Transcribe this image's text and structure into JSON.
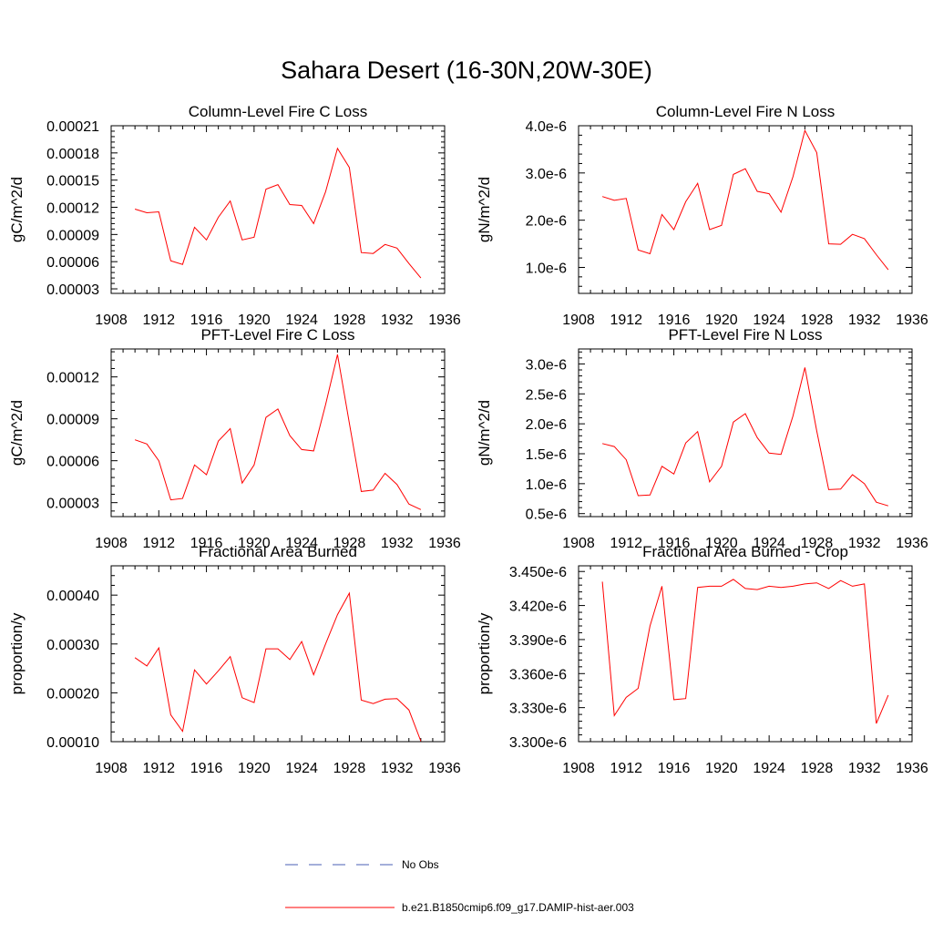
{
  "title": "Sahara Desert (16-30N,20W-30E)",
  "colors": {
    "model": "#ff0000",
    "obs": "#4a5fb5",
    "axis": "#000000"
  },
  "legend": {
    "obs_label": "No Obs",
    "model_label": "b.e21.B1850cmip6.f09_g17.DAMIP-hist-aer.003"
  },
  "chart_data": [
    {
      "type": "line",
      "title": "Column-Level Fire C Loss",
      "ylabel": "gC/m^2/d",
      "xlim": [
        1908,
        1936
      ],
      "xticks": [
        "1908",
        "1912",
        "1916",
        "1920",
        "1924",
        "1928",
        "1932",
        "1936"
      ],
      "ylim": [
        2.5e-05,
        0.00021
      ],
      "yticks": [
        "0.00003",
        "0.00006",
        "0.00009",
        "0.00012",
        "0.00015",
        "0.00018",
        "0.00021"
      ],
      "series": [
        {
          "x": [
            1910,
            1911,
            1912,
            1913,
            1914,
            1915,
            1916,
            1917,
            1918,
            1919,
            1920,
            1921,
            1922,
            1923,
            1924,
            1925,
            1926,
            1927,
            1928,
            1929,
            1930,
            1931,
            1932,
            1933,
            1934
          ],
          "values": [
            0.000118,
            0.000114,
            0.000115,
            6.1e-05,
            5.7e-05,
            9.8e-05,
            8.4e-05,
            0.000109,
            0.000127,
            8.4e-05,
            8.7e-05,
            0.00014,
            0.000145,
            0.000123,
            0.000122,
            0.000102,
            0.000137,
            0.000185,
            0.000164,
            7e-05,
            6.9e-05,
            7.9e-05,
            7.5e-05,
            5.8e-05,
            4.2e-05
          ]
        }
      ]
    },
    {
      "type": "line",
      "title": "Column-Level Fire N Loss",
      "ylabel": "gN/m^2/d",
      "xlim": [
        1908,
        1936
      ],
      "xticks": [
        "1908",
        "1912",
        "1916",
        "1920",
        "1924",
        "1928",
        "1932",
        "1936"
      ],
      "ylim": [
        4.5e-07,
        4e-06
      ],
      "yticks": [
        "1.0e-6",
        "2.0e-6",
        "3.0e-6",
        "4.0e-6"
      ],
      "series": [
        {
          "x": [
            1910,
            1911,
            1912,
            1913,
            1914,
            1915,
            1916,
            1917,
            1918,
            1919,
            1920,
            1921,
            1922,
            1923,
            1924,
            1925,
            1926,
            1927,
            1928,
            1929,
            1930,
            1931,
            1932,
            1933,
            1934
          ],
          "values": [
            2.5e-06,
            2.42e-06,
            2.46e-06,
            1.37e-06,
            1.29e-06,
            2.12e-06,
            1.8e-06,
            2.39e-06,
            2.78e-06,
            1.8e-06,
            1.89e-06,
            2.97e-06,
            3.09e-06,
            2.61e-06,
            2.56e-06,
            2.17e-06,
            2.92e-06,
            3.9e-06,
            3.43e-06,
            1.5e-06,
            1.49e-06,
            1.7e-06,
            1.61e-06,
            1.27e-06,
            9.5e-07
          ]
        }
      ]
    },
    {
      "type": "line",
      "title": "PFT-Level Fire C Loss",
      "ylabel": "gC/m^2/d",
      "xlim": [
        1908,
        1936
      ],
      "xticks": [
        "1908",
        "1912",
        "1916",
        "1920",
        "1924",
        "1928",
        "1932",
        "1936"
      ],
      "ylim": [
        2e-05,
        0.00014
      ],
      "yticks": [
        "0.00003",
        "0.00006",
        "0.00009",
        "0.00012"
      ],
      "series": [
        {
          "x": [
            1910,
            1911,
            1912,
            1913,
            1914,
            1915,
            1916,
            1917,
            1918,
            1919,
            1920,
            1921,
            1922,
            1923,
            1924,
            1925,
            1926,
            1927,
            1928,
            1929,
            1930,
            1931,
            1932,
            1933,
            1934
          ],
          "values": [
            7.5e-05,
            7.2e-05,
            6e-05,
            3.2e-05,
            3.3e-05,
            5.7e-05,
            5e-05,
            7.4e-05,
            8.3e-05,
            4.4e-05,
            5.7e-05,
            9.1e-05,
            9.7e-05,
            7.8e-05,
            6.8e-05,
            6.7e-05,
            0.0001,
            0.000136,
            8.7e-05,
            3.8e-05,
            3.9e-05,
            5.1e-05,
            4.3e-05,
            2.9e-05,
            2.5e-05
          ]
        }
      ]
    },
    {
      "type": "line",
      "title": "PFT-Level Fire N Loss",
      "ylabel": "gN/m^2/d",
      "xlim": [
        1908,
        1936
      ],
      "xticks": [
        "1908",
        "1912",
        "1916",
        "1920",
        "1924",
        "1928",
        "1932",
        "1936"
      ],
      "ylim": [
        4.5e-07,
        3.25e-06
      ],
      "yticks": [
        "0.5e-6",
        "1.0e-6",
        "1.5e-6",
        "2.0e-6",
        "2.5e-6",
        "3.0e-6"
      ],
      "series": [
        {
          "x": [
            1910,
            1911,
            1912,
            1913,
            1914,
            1915,
            1916,
            1917,
            1918,
            1919,
            1920,
            1921,
            1922,
            1923,
            1924,
            1925,
            1926,
            1927,
            1928,
            1929,
            1930,
            1931,
            1932,
            1933,
            1934
          ],
          "values": [
            1.67e-06,
            1.62e-06,
            1.4e-06,
            8e-07,
            8.1e-07,
            1.29e-06,
            1.16e-06,
            1.68e-06,
            1.87e-06,
            1.03e-06,
            1.29e-06,
            2.03e-06,
            2.17e-06,
            1.77e-06,
            1.51e-06,
            1.49e-06,
            2.13e-06,
            2.94e-06,
            1.88e-06,
            9e-07,
            9.1e-07,
            1.15e-06,
            1e-06,
            6.9e-07,
            6.3e-07
          ]
        }
      ]
    },
    {
      "type": "line",
      "title": "Fractional Area Burned",
      "ylabel": "proportion/y",
      "xlim": [
        1908,
        1936
      ],
      "xticks": [
        "1908",
        "1912",
        "1916",
        "1920",
        "1924",
        "1928",
        "1932",
        "1936"
      ],
      "ylim": [
        0.0001,
        0.00046
      ],
      "yticks": [
        "0.00010",
        "0.00020",
        "0.00030",
        "0.00040"
      ],
      "series": [
        {
          "x": [
            1910,
            1911,
            1912,
            1913,
            1914,
            1915,
            1916,
            1917,
            1918,
            1919,
            1920,
            1921,
            1922,
            1923,
            1924,
            1925,
            1926,
            1927,
            1928,
            1929,
            1930,
            1931,
            1932,
            1933,
            1934
          ],
          "values": [
            0.000272,
            0.000255,
            0.000292,
            0.000155,
            0.000121,
            0.000247,
            0.000218,
            0.000245,
            0.000274,
            0.00019,
            0.00018,
            0.00029,
            0.00029,
            0.000268,
            0.000305,
            0.000237,
            0.0003,
            0.00036,
            0.000404,
            0.000185,
            0.000178,
            0.000187,
            0.000188,
            0.000165,
            0.000101
          ]
        }
      ]
    },
    {
      "type": "line",
      "title": "Fractional Area Burned - Crop",
      "ylabel": "proportion/y",
      "xlim": [
        1908,
        1936
      ],
      "xticks": [
        "1908",
        "1912",
        "1916",
        "1920",
        "1924",
        "1928",
        "1932",
        "1936"
      ],
      "ylim": [
        3.3e-06,
        3.455e-06
      ],
      "yticks": [
        "3.300e-6",
        "3.330e-6",
        "3.360e-6",
        "3.390e-6",
        "3.420e-6",
        "3.450e-6"
      ],
      "series": [
        {
          "x": [
            1910,
            1911,
            1912,
            1913,
            1914,
            1915,
            1916,
            1917,
            1918,
            1919,
            1920,
            1921,
            1922,
            1923,
            1924,
            1925,
            1926,
            1927,
            1928,
            1929,
            1930,
            1931,
            1932,
            1933,
            1934
          ],
          "values": [
            3.441e-06,
            3.323e-06,
            3.339e-06,
            3.347e-06,
            3.402e-06,
            3.437e-06,
            3.337e-06,
            3.338e-06,
            3.436e-06,
            3.437e-06,
            3.437e-06,
            3.443e-06,
            3.435e-06,
            3.434e-06,
            3.437e-06,
            3.436e-06,
            3.437e-06,
            3.439e-06,
            3.44e-06,
            3.435e-06,
            3.442e-06,
            3.437e-06,
            3.439e-06,
            3.316e-06,
            3.341e-06
          ]
        }
      ]
    }
  ]
}
